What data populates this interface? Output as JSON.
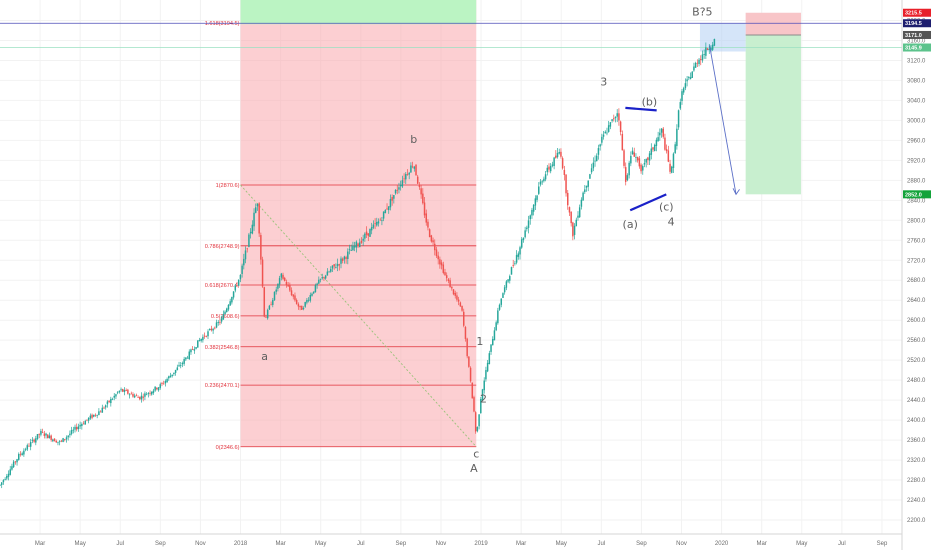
{
  "chart_data": {
    "type": "candlestick",
    "symbol": "",
    "ylim": [
      2180,
      3225
    ],
    "y_ticks": [
      2200,
      2240,
      2280,
      2320,
      2360,
      2400,
      2440,
      2480,
      2520,
      2560,
      2600,
      2640,
      2680,
      2720,
      2760,
      2800,
      2840,
      2880,
      2920,
      2960,
      3000,
      3040,
      3080,
      3120,
      3160,
      3200
    ],
    "x_ticks": [
      "Mar",
      "May",
      "Jul",
      "Sep",
      "Nov",
      "2018",
      "Mar",
      "May",
      "Jul",
      "Sep",
      "Nov",
      "2019",
      "Mar",
      "May",
      "Jul",
      "Sep",
      "Nov",
      "2020",
      "Mar",
      "May",
      "Jul",
      "Sep"
    ],
    "colors": {
      "up": "#26a69a",
      "down": "#ef5350",
      "fib_line": "#e0303a",
      "fib_zone": "#f9a7ad",
      "target_zone": "#b7f5c2",
      "loss_zone": "#f8c5c8",
      "profit_zone": "#c8efcf",
      "trendline": "#1a21c8",
      "projection_line": "#5b6fc7",
      "resistance_line": "#4b4bb8",
      "support_line": "#9be0c2"
    },
    "price_path": [
      [
        2017.0,
        2270
      ],
      [
        2017.08,
        2330
      ],
      [
        2017.17,
        2375
      ],
      [
        2017.25,
        2355
      ],
      [
        2017.33,
        2390
      ],
      [
        2017.42,
        2420
      ],
      [
        2017.5,
        2460
      ],
      [
        2017.58,
        2445
      ],
      [
        2017.67,
        2470
      ],
      [
        2017.75,
        2510
      ],
      [
        2017.83,
        2560
      ],
      [
        2017.92,
        2600
      ],
      [
        2018.0,
        2690
      ],
      [
        2018.07,
        2840
      ],
      [
        2018.1,
        2600
      ],
      [
        2018.17,
        2690
      ],
      [
        2018.25,
        2620
      ],
      [
        2018.33,
        2680
      ],
      [
        2018.42,
        2720
      ],
      [
        2018.5,
        2760
      ],
      [
        2018.58,
        2800
      ],
      [
        2018.67,
        2880
      ],
      [
        2018.72,
        2915
      ],
      [
        2018.78,
        2780
      ],
      [
        2018.85,
        2690
      ],
      [
        2018.92,
        2620
      ],
      [
        2018.97,
        2420
      ],
      [
        2018.98,
        2365
      ],
      [
        2019.0,
        2450
      ],
      [
        2019.08,
        2640
      ],
      [
        2019.17,
        2760
      ],
      [
        2019.25,
        2880
      ],
      [
        2019.33,
        2940
      ],
      [
        2019.38,
        2770
      ],
      [
        2019.42,
        2850
      ],
      [
        2019.5,
        2960
      ],
      [
        2019.57,
        3020
      ],
      [
        2019.6,
        2880
      ],
      [
        2019.63,
        2940
      ],
      [
        2019.67,
        2900
      ],
      [
        2019.75,
        2980
      ],
      [
        2019.79,
        2890
      ],
      [
        2019.83,
        3050
      ],
      [
        2019.9,
        3120
      ],
      [
        2019.97,
        3160
      ]
    ],
    "fibonacci": {
      "levels": [
        {
          "label": "0(2346.6)",
          "ratio": 0,
          "price": 2346.6
        },
        {
          "label": "0.236(2470.1)",
          "ratio": 0.236,
          "price": 2470.1
        },
        {
          "label": "0.382(2546.8)",
          "ratio": 0.382,
          "price": 2546.8
        },
        {
          "label": "0.5(2608.6)",
          "ratio": 0.5,
          "price": 2608.6
        },
        {
          "label": "0.618(2670.4)",
          "ratio": 0.618,
          "price": 2670.4
        },
        {
          "label": "0.786(2748.9)",
          "ratio": 0.786,
          "price": 2748.9
        },
        {
          "label": "1(2870.6)",
          "ratio": 1,
          "price": 2870.6
        },
        {
          "label": "1.618(3194.5)",
          "ratio": 1.618,
          "price": 3194.5
        }
      ]
    },
    "wave_labels": [
      {
        "text": "a",
        "x": 2018.1,
        "price": 2520
      },
      {
        "text": "b",
        "x": 2018.72,
        "price": 2955
      },
      {
        "text": "c",
        "x": 2018.98,
        "price": 2325
      },
      {
        "text": "A",
        "x": 2018.97,
        "price": 2296
      },
      {
        "text": "1",
        "x": 2018.995,
        "price": 2550
      },
      {
        "text": "2",
        "x": 2019.01,
        "price": 2435
      },
      {
        "text": "3",
        "x": 2019.51,
        "price": 3070
      },
      {
        "text": "(a)",
        "x": 2019.62,
        "price": 2785
      },
      {
        "text": "(b)",
        "x": 2019.7,
        "price": 3030
      },
      {
        "text": "(c)",
        "x": 2019.77,
        "price": 2820
      },
      {
        "text": "4",
        "x": 2019.79,
        "price": 2790
      },
      {
        "text": "B?5",
        "x": 2019.92,
        "price": 3210
      }
    ],
    "price_tags": [
      {
        "text": "3215.5",
        "price": 3215.5,
        "bg": "#e8202a",
        "fg": "#ffffff"
      },
      {
        "text": "3194.5",
        "price": 3194.5,
        "bg": "#1d1e6e",
        "fg": "#ffffff"
      },
      {
        "text": "3171.0",
        "price": 3171.0,
        "bg": "#555555",
        "fg": "#ffffff"
      },
      {
        "text": "3145.9",
        "price": 3145.9,
        "bg": "#5cc38c",
        "fg": "#ffffff"
      },
      {
        "text": "2852.0",
        "price": 2852.0,
        "bg": "#13a33a",
        "fg": "#ffffff"
      }
    ]
  }
}
